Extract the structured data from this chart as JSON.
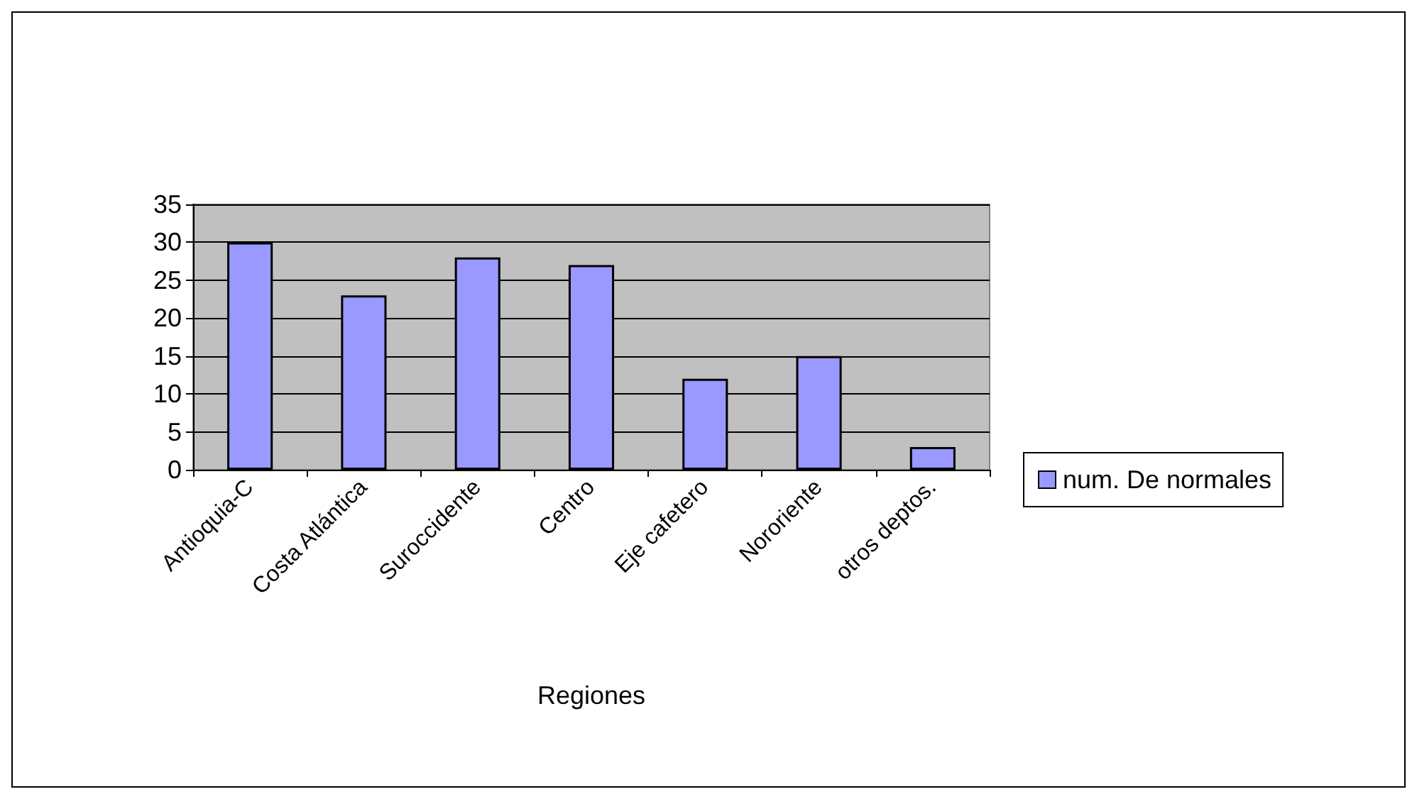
{
  "chart_data": {
    "type": "bar",
    "xlabel": "Regiones",
    "categories": [
      "Antioquia-C",
      "Costa Atlántica",
      "Suroccidente",
      "Centro",
      "Eje cafetero",
      "Nororiente",
      "otros deptos."
    ],
    "series": [
      {
        "name": "num. De normales",
        "color": "#9999ff",
        "values": [
          30,
          23,
          28,
          27,
          12,
          15,
          3
        ]
      }
    ],
    "ylim": [
      0,
      35
    ],
    "yticks": [
      0,
      5,
      10,
      15,
      20,
      25,
      30,
      35
    ],
    "grid": "y",
    "legend": "right"
  }
}
